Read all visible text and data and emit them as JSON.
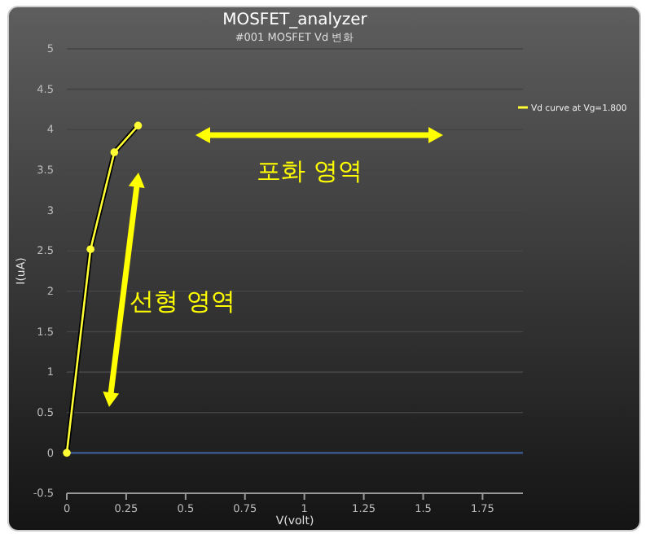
{
  "chart_data": {
    "type": "line",
    "title": "MOSFET_analyzer",
    "subtitle": "#001 MOSFET Vd 변화",
    "xlabel": "V(volt)",
    "ylabel": "I(uA)",
    "x": [
      0,
      0.1,
      0.2,
      0.3
    ],
    "series": [
      {
        "name": "Vd curve at Vg=1.800",
        "color": "#ffff33",
        "values": [
          0,
          2.52,
          3.72,
          4.05
        ]
      }
    ],
    "xlim": [
      0,
      1.92
    ],
    "xticks": [
      0,
      0.25,
      0.5,
      0.75,
      1,
      1.25,
      1.5,
      1.75
    ],
    "ylim": [
      -0.5,
      5
    ],
    "yticks": [
      -0.5,
      0,
      0.5,
      1,
      1.5,
      2,
      2.5,
      3,
      3.5,
      4,
      4.5,
      5
    ],
    "ref_lines": [
      {
        "axis": "y",
        "value": 0,
        "label": null,
        "color": "#3a5a95"
      }
    ],
    "annotations": [
      "포화 영역",
      "선형 영역"
    ],
    "grid": "y",
    "legend": "right",
    "marker": "circle",
    "line_style": "solid"
  }
}
